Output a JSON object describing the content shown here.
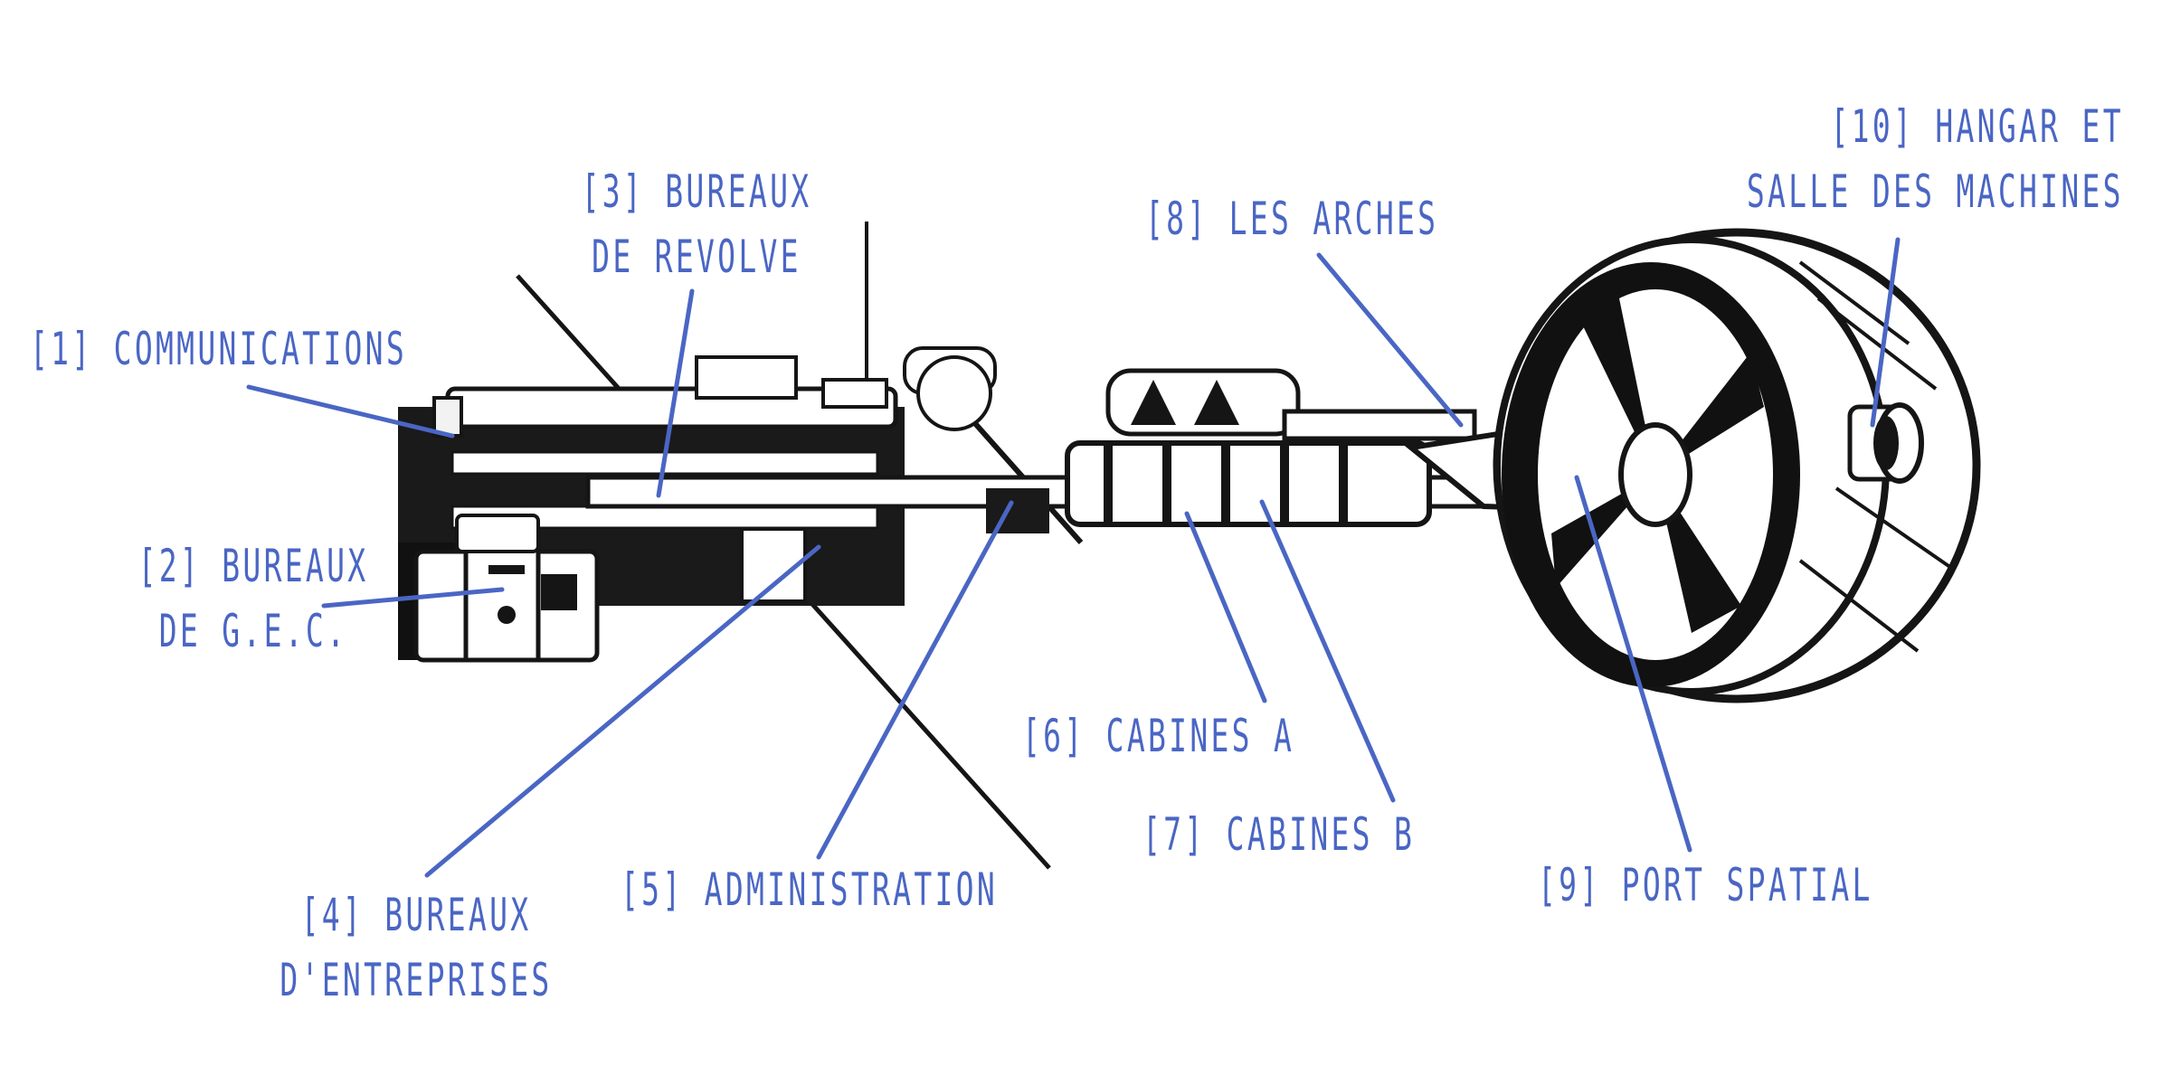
{
  "colors": {
    "label": "#4a66c4",
    "leader": "#4a66c4",
    "structure": "#151515",
    "structure_light": "#ffffff",
    "background": "#ffffff"
  },
  "labels": [
    {
      "id": "communications",
      "lines": [
        "[1] COMMUNICATIONS"
      ]
    },
    {
      "id": "bureaux-gec",
      "lines": [
        "[2] BUREAUX",
        "DE G.E.C."
      ]
    },
    {
      "id": "bureaux-revolve",
      "lines": [
        "[3] BUREAUX",
        "DE REVOLVE"
      ]
    },
    {
      "id": "bureaux-entreprises",
      "lines": [
        "[4] BUREAUX",
        "D'ENTREPRISES"
      ]
    },
    {
      "id": "administration",
      "lines": [
        "[5] ADMINISTRATION"
      ]
    },
    {
      "id": "cabines-a",
      "lines": [
        "[6] CABINES A"
      ]
    },
    {
      "id": "cabines-b",
      "lines": [
        "[7] CABINES B"
      ]
    },
    {
      "id": "les-arches",
      "lines": [
        "[8] LES ARCHES"
      ]
    },
    {
      "id": "port-spatial",
      "lines": [
        "[9] PORT SPATIAL"
      ]
    },
    {
      "id": "hangar",
      "lines": [
        "[10] HANGAR ET",
        "SALLE DES MACHINES"
      ]
    }
  ]
}
